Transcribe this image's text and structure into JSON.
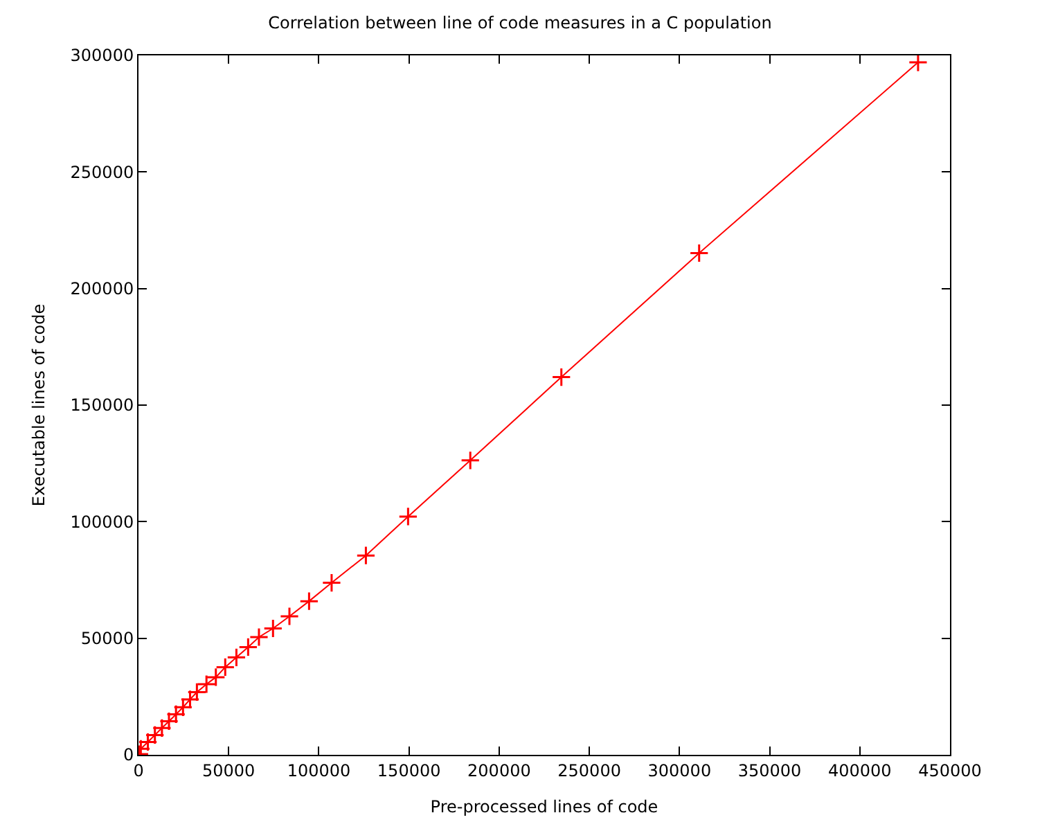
{
  "chart_data": {
    "type": "line",
    "title": "Correlation between line of code measures in a C population",
    "xlabel": "Pre-processed lines of code",
    "ylabel": "Executable lines of code",
    "x": [
      500,
      1300,
      5200,
      9100,
      13000,
      16900,
      20800,
      24700,
      28600,
      32400,
      37700,
      42900,
      48100,
      54300,
      60800,
      66800,
      74600,
      83700,
      94600,
      107100,
      126100,
      149500,
      184000,
      234500,
      310900,
      432300
    ],
    "series": [
      {
        "color": "#ff0000",
        "values": [
          300,
          2600,
          5500,
          8500,
          11500,
          14400,
          17400,
          20400,
          23800,
          26900,
          30300,
          33300,
          37600,
          41800,
          46200,
          50500,
          54200,
          59400,
          65900,
          73800,
          85500,
          102200,
          126300,
          162000,
          215200,
          297000
        ]
      }
    ],
    "xlim": [
      0,
      450000
    ],
    "ylim": [
      0,
      300000
    ],
    "xticks": [
      0,
      50000,
      100000,
      150000,
      200000,
      250000,
      300000,
      350000,
      400000,
      450000
    ],
    "yticks": [
      0,
      50000,
      100000,
      150000,
      200000,
      250000,
      300000
    ],
    "marker": "cross",
    "line_style": "solid"
  }
}
